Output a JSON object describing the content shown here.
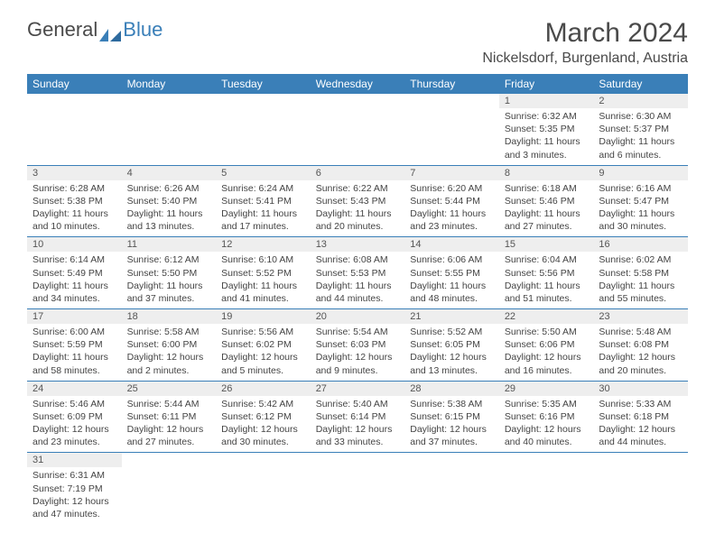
{
  "logo": {
    "general": "General",
    "blue": "Blue"
  },
  "title": "March 2024",
  "location": "Nickelsdorf, Burgenland, Austria",
  "colors": {
    "header_bg": "#3a7fb8",
    "header_fg": "#ffffff",
    "daynum_bg": "#eeeeee",
    "border": "#3a7fb8"
  },
  "weekday_headers": [
    "Sunday",
    "Monday",
    "Tuesday",
    "Wednesday",
    "Thursday",
    "Friday",
    "Saturday"
  ],
  "weeks": [
    [
      {
        "day": "",
        "sunrise": "",
        "sunset": "",
        "daylight": ""
      },
      {
        "day": "",
        "sunrise": "",
        "sunset": "",
        "daylight": ""
      },
      {
        "day": "",
        "sunrise": "",
        "sunset": "",
        "daylight": ""
      },
      {
        "day": "",
        "sunrise": "",
        "sunset": "",
        "daylight": ""
      },
      {
        "day": "",
        "sunrise": "",
        "sunset": "",
        "daylight": ""
      },
      {
        "day": "1",
        "sunrise": "Sunrise: 6:32 AM",
        "sunset": "Sunset: 5:35 PM",
        "daylight": "Daylight: 11 hours and 3 minutes."
      },
      {
        "day": "2",
        "sunrise": "Sunrise: 6:30 AM",
        "sunset": "Sunset: 5:37 PM",
        "daylight": "Daylight: 11 hours and 6 minutes."
      }
    ],
    [
      {
        "day": "3",
        "sunrise": "Sunrise: 6:28 AM",
        "sunset": "Sunset: 5:38 PM",
        "daylight": "Daylight: 11 hours and 10 minutes."
      },
      {
        "day": "4",
        "sunrise": "Sunrise: 6:26 AM",
        "sunset": "Sunset: 5:40 PM",
        "daylight": "Daylight: 11 hours and 13 minutes."
      },
      {
        "day": "5",
        "sunrise": "Sunrise: 6:24 AM",
        "sunset": "Sunset: 5:41 PM",
        "daylight": "Daylight: 11 hours and 17 minutes."
      },
      {
        "day": "6",
        "sunrise": "Sunrise: 6:22 AM",
        "sunset": "Sunset: 5:43 PM",
        "daylight": "Daylight: 11 hours and 20 minutes."
      },
      {
        "day": "7",
        "sunrise": "Sunrise: 6:20 AM",
        "sunset": "Sunset: 5:44 PM",
        "daylight": "Daylight: 11 hours and 23 minutes."
      },
      {
        "day": "8",
        "sunrise": "Sunrise: 6:18 AM",
        "sunset": "Sunset: 5:46 PM",
        "daylight": "Daylight: 11 hours and 27 minutes."
      },
      {
        "day": "9",
        "sunrise": "Sunrise: 6:16 AM",
        "sunset": "Sunset: 5:47 PM",
        "daylight": "Daylight: 11 hours and 30 minutes."
      }
    ],
    [
      {
        "day": "10",
        "sunrise": "Sunrise: 6:14 AM",
        "sunset": "Sunset: 5:49 PM",
        "daylight": "Daylight: 11 hours and 34 minutes."
      },
      {
        "day": "11",
        "sunrise": "Sunrise: 6:12 AM",
        "sunset": "Sunset: 5:50 PM",
        "daylight": "Daylight: 11 hours and 37 minutes."
      },
      {
        "day": "12",
        "sunrise": "Sunrise: 6:10 AM",
        "sunset": "Sunset: 5:52 PM",
        "daylight": "Daylight: 11 hours and 41 minutes."
      },
      {
        "day": "13",
        "sunrise": "Sunrise: 6:08 AM",
        "sunset": "Sunset: 5:53 PM",
        "daylight": "Daylight: 11 hours and 44 minutes."
      },
      {
        "day": "14",
        "sunrise": "Sunrise: 6:06 AM",
        "sunset": "Sunset: 5:55 PM",
        "daylight": "Daylight: 11 hours and 48 minutes."
      },
      {
        "day": "15",
        "sunrise": "Sunrise: 6:04 AM",
        "sunset": "Sunset: 5:56 PM",
        "daylight": "Daylight: 11 hours and 51 minutes."
      },
      {
        "day": "16",
        "sunrise": "Sunrise: 6:02 AM",
        "sunset": "Sunset: 5:58 PM",
        "daylight": "Daylight: 11 hours and 55 minutes."
      }
    ],
    [
      {
        "day": "17",
        "sunrise": "Sunrise: 6:00 AM",
        "sunset": "Sunset: 5:59 PM",
        "daylight": "Daylight: 11 hours and 58 minutes."
      },
      {
        "day": "18",
        "sunrise": "Sunrise: 5:58 AM",
        "sunset": "Sunset: 6:00 PM",
        "daylight": "Daylight: 12 hours and 2 minutes."
      },
      {
        "day": "19",
        "sunrise": "Sunrise: 5:56 AM",
        "sunset": "Sunset: 6:02 PM",
        "daylight": "Daylight: 12 hours and 5 minutes."
      },
      {
        "day": "20",
        "sunrise": "Sunrise: 5:54 AM",
        "sunset": "Sunset: 6:03 PM",
        "daylight": "Daylight: 12 hours and 9 minutes."
      },
      {
        "day": "21",
        "sunrise": "Sunrise: 5:52 AM",
        "sunset": "Sunset: 6:05 PM",
        "daylight": "Daylight: 12 hours and 13 minutes."
      },
      {
        "day": "22",
        "sunrise": "Sunrise: 5:50 AM",
        "sunset": "Sunset: 6:06 PM",
        "daylight": "Daylight: 12 hours and 16 minutes."
      },
      {
        "day": "23",
        "sunrise": "Sunrise: 5:48 AM",
        "sunset": "Sunset: 6:08 PM",
        "daylight": "Daylight: 12 hours and 20 minutes."
      }
    ],
    [
      {
        "day": "24",
        "sunrise": "Sunrise: 5:46 AM",
        "sunset": "Sunset: 6:09 PM",
        "daylight": "Daylight: 12 hours and 23 minutes."
      },
      {
        "day": "25",
        "sunrise": "Sunrise: 5:44 AM",
        "sunset": "Sunset: 6:11 PM",
        "daylight": "Daylight: 12 hours and 27 minutes."
      },
      {
        "day": "26",
        "sunrise": "Sunrise: 5:42 AM",
        "sunset": "Sunset: 6:12 PM",
        "daylight": "Daylight: 12 hours and 30 minutes."
      },
      {
        "day": "27",
        "sunrise": "Sunrise: 5:40 AM",
        "sunset": "Sunset: 6:14 PM",
        "daylight": "Daylight: 12 hours and 33 minutes."
      },
      {
        "day": "28",
        "sunrise": "Sunrise: 5:38 AM",
        "sunset": "Sunset: 6:15 PM",
        "daylight": "Daylight: 12 hours and 37 minutes."
      },
      {
        "day": "29",
        "sunrise": "Sunrise: 5:35 AM",
        "sunset": "Sunset: 6:16 PM",
        "daylight": "Daylight: 12 hours and 40 minutes."
      },
      {
        "day": "30",
        "sunrise": "Sunrise: 5:33 AM",
        "sunset": "Sunset: 6:18 PM",
        "daylight": "Daylight: 12 hours and 44 minutes."
      }
    ],
    [
      {
        "day": "31",
        "sunrise": "Sunrise: 6:31 AM",
        "sunset": "Sunset: 7:19 PM",
        "daylight": "Daylight: 12 hours and 47 minutes."
      },
      {
        "day": "",
        "sunrise": "",
        "sunset": "",
        "daylight": ""
      },
      {
        "day": "",
        "sunrise": "",
        "sunset": "",
        "daylight": ""
      },
      {
        "day": "",
        "sunrise": "",
        "sunset": "",
        "daylight": ""
      },
      {
        "day": "",
        "sunrise": "",
        "sunset": "",
        "daylight": ""
      },
      {
        "day": "",
        "sunrise": "",
        "sunset": "",
        "daylight": ""
      },
      {
        "day": "",
        "sunrise": "",
        "sunset": "",
        "daylight": ""
      }
    ]
  ]
}
